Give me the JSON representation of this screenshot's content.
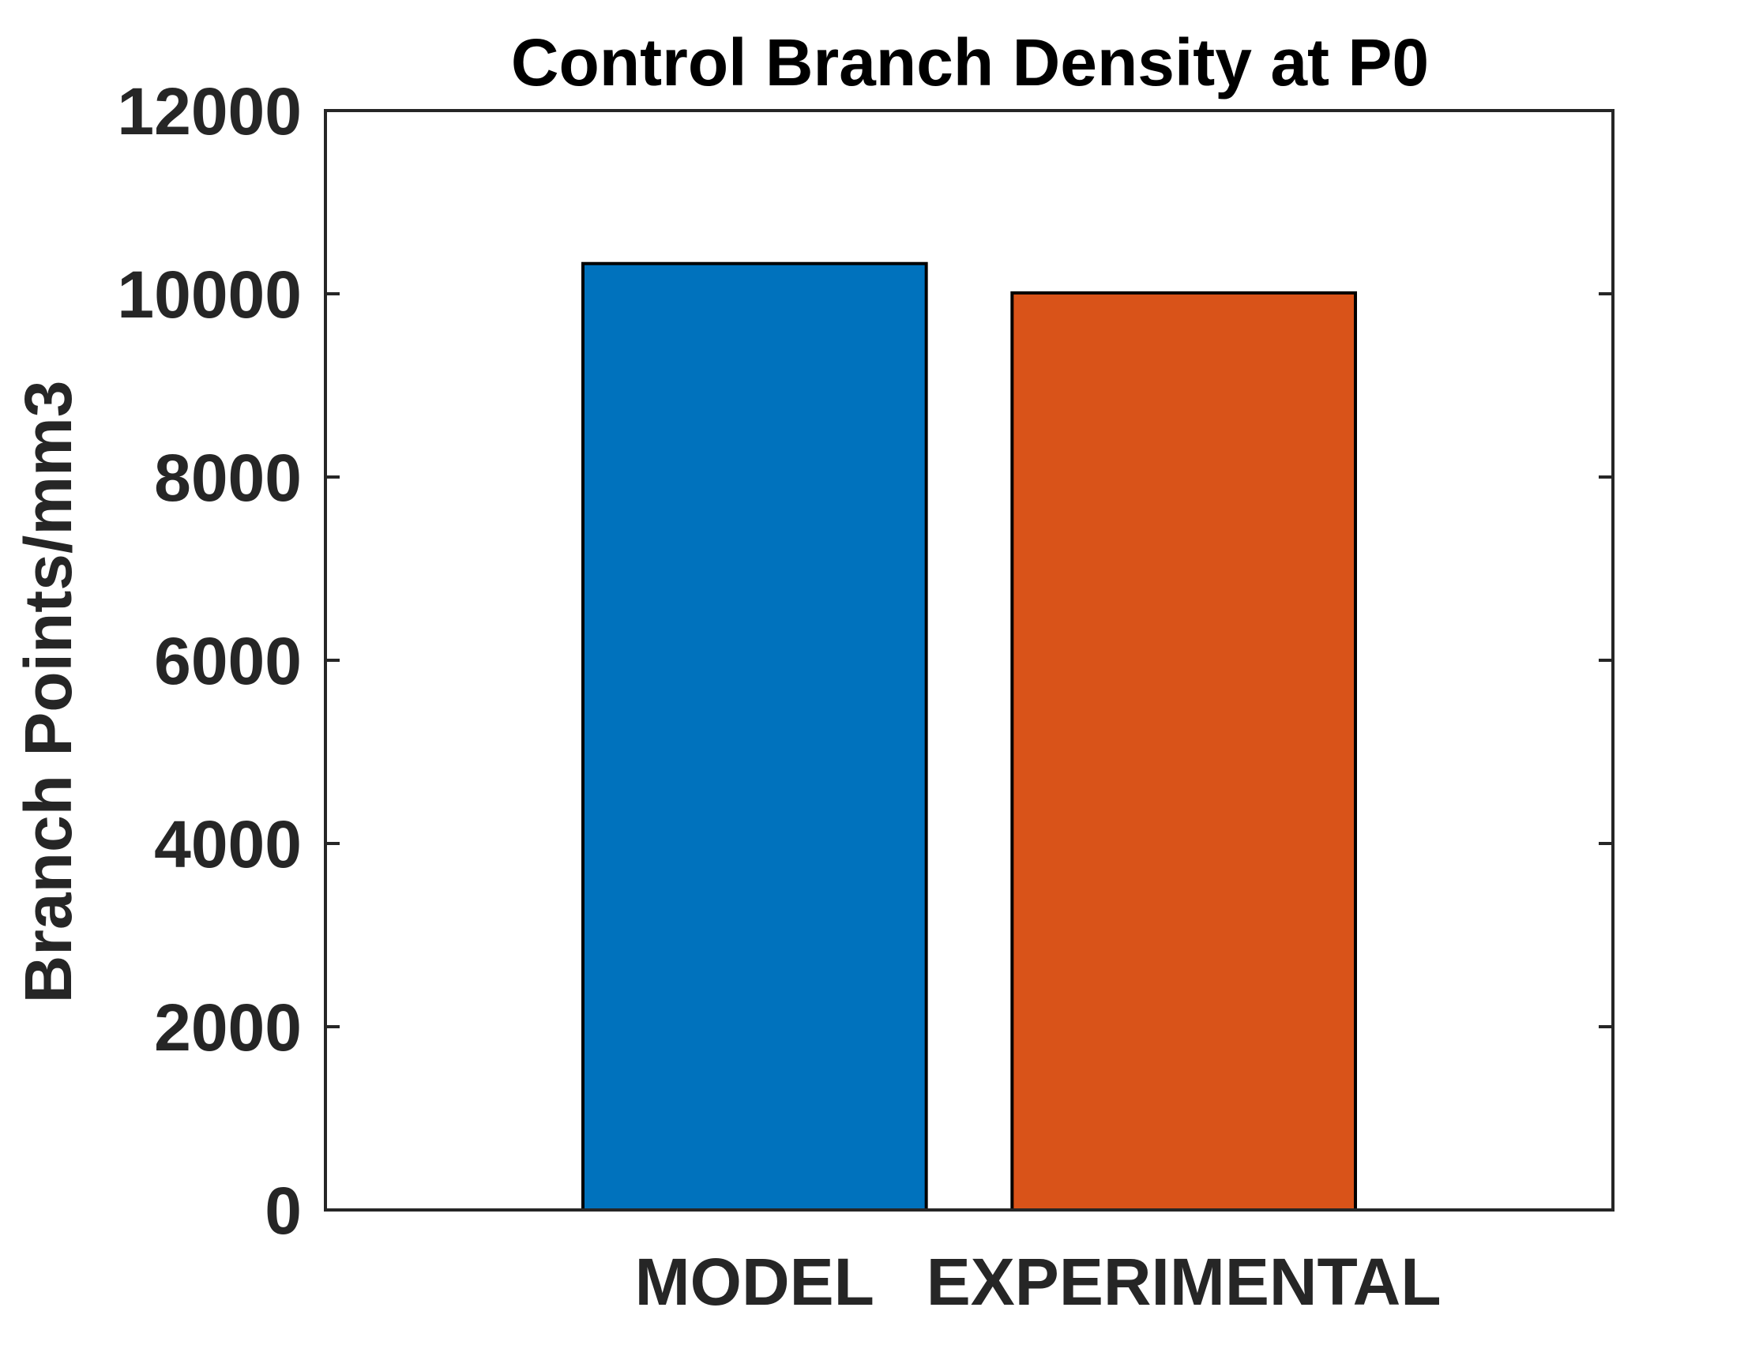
{
  "chart_data": {
    "type": "bar",
    "title": "Control Branch Density at P0",
    "xlabel": "",
    "ylabel": "Branch Points/mm3",
    "categories": [
      "MODEL",
      "EXPERIMENTAL"
    ],
    "values": [
      10330,
      10010
    ],
    "bar_colors": [
      "#0072BD",
      "#D95319"
    ],
    "ylim": [
      0,
      12000
    ],
    "yticks": [
      {
        "value": 0,
        "label": "0"
      },
      {
        "value": 2000,
        "label": "2000"
      },
      {
        "value": 4000,
        "label": "4000"
      },
      {
        "value": 6000,
        "label": "6000"
      },
      {
        "value": 8000,
        "label": "8000"
      },
      {
        "value": 10000,
        "label": "10000"
      },
      {
        "value": 12000,
        "label": "12000"
      }
    ],
    "grid": false,
    "axis_color": "#262626",
    "bar_edge_color": "#000000"
  }
}
